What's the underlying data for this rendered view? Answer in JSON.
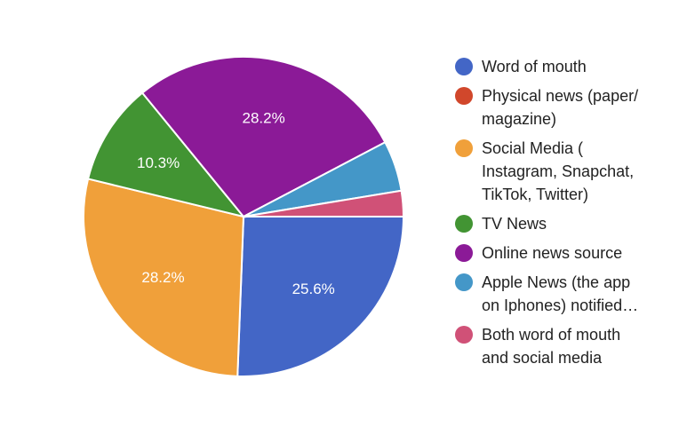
{
  "chart_data": {
    "type": "pie",
    "title": "",
    "legend_position": "right",
    "slices": [
      {
        "label": "Word of mouth",
        "legend_text": "Word of mouth",
        "value": 25.6,
        "display_label": "25.6%",
        "color": "#4366c6"
      },
      {
        "label": "Physical news (paper/magazine)",
        "legend_text": "Physical news (paper/\nmagazine)",
        "value": 0,
        "display_label": "",
        "color": "#d1472b"
      },
      {
        "label": "Social Media ( Instagram, Snapchat, TikTok, Twitter)",
        "legend_text": "Social Media (\nInstagram, Snapchat,\nTikTok, Twitter)",
        "value": 28.2,
        "display_label": "28.2%",
        "color": "#f0a03a"
      },
      {
        "label": "TV News",
        "legend_text": "TV News",
        "value": 10.3,
        "display_label": "10.3%",
        "color": "#429433"
      },
      {
        "label": "Online news source",
        "legend_text": "Online news source",
        "value": 28.2,
        "display_label": "28.2%",
        "color": "#8b1a97"
      },
      {
        "label": "Apple News (the app on Iphones) notified…",
        "legend_text": "Apple News (the app\non Iphones) notified…",
        "value": 5.1,
        "display_label": "",
        "color": "#4497c8"
      },
      {
        "label": "Both word of mouth and social media",
        "legend_text": "Both word of mouth\nand social media",
        "value": 2.6,
        "display_label": "",
        "color": "#d05177"
      }
    ]
  }
}
